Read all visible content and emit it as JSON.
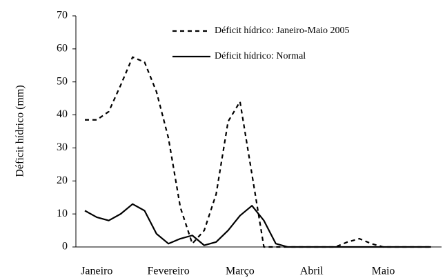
{
  "chart_data": {
    "type": "line",
    "y_label": "Déficit hídrico (mm)",
    "categories": [
      null,
      "Janeiro",
      null,
      null,
      null,
      null,
      null,
      "Fevereiro",
      null,
      null,
      null,
      null,
      null,
      "Março",
      null,
      null,
      null,
      null,
      null,
      "Abril",
      null,
      null,
      null,
      null,
      null,
      "Maio",
      null,
      null,
      null,
      null
    ],
    "series": [
      {
        "name": "Déficit hídrico: Janeiro-Maio 2005",
        "color": "#000000",
        "dashed": true,
        "values": [
          38.5,
          38.5,
          41,
          49,
          57.5,
          56,
          47,
          33,
          12,
          1,
          5,
          16,
          38,
          44,
          22,
          0,
          0,
          0,
          0,
          0,
          0,
          0,
          1.5,
          2.5,
          1,
          0,
          0,
          0,
          0,
          0
        ]
      },
      {
        "name": "Déficit hídrico: Normal",
        "color": "#000000",
        "dashed": false,
        "values": [
          11,
          9,
          8,
          10,
          13,
          11,
          4,
          1,
          2.5,
          3.5,
          0.5,
          1.5,
          5,
          9.5,
          12.5,
          8,
          1,
          0,
          0,
          0,
          0,
          0,
          0,
          0,
          0,
          0,
          0,
          0,
          0,
          0
        ]
      }
    ],
    "ylim": [
      0,
      70
    ],
    "yticks": [
      0,
      10,
      20,
      30,
      40,
      50,
      60,
      70
    ]
  }
}
